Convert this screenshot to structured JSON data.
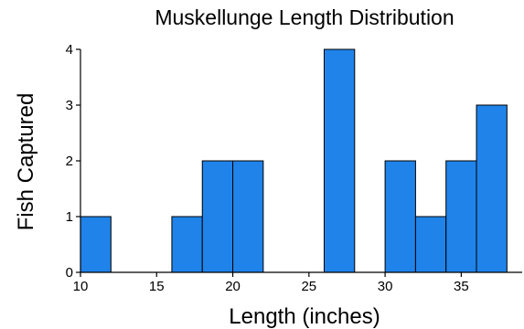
{
  "chart_data": {
    "type": "bar",
    "title": "Muskellunge Length Distribution",
    "xlabel": "Length (inches)",
    "ylabel": "Fish Captured",
    "bins": [
      {
        "start": 10,
        "end": 12,
        "count": 1
      },
      {
        "start": 12,
        "end": 14,
        "count": 0
      },
      {
        "start": 14,
        "end": 16,
        "count": 0
      },
      {
        "start": 16,
        "end": 18,
        "count": 1
      },
      {
        "start": 18,
        "end": 20,
        "count": 2
      },
      {
        "start": 20,
        "end": 22,
        "count": 2
      },
      {
        "start": 22,
        "end": 24,
        "count": 0
      },
      {
        "start": 24,
        "end": 26,
        "count": 0
      },
      {
        "start": 26,
        "end": 28,
        "count": 4
      },
      {
        "start": 28,
        "end": 30,
        "count": 0
      },
      {
        "start": 30,
        "end": 32,
        "count": 2
      },
      {
        "start": 32,
        "end": 34,
        "count": 1
      },
      {
        "start": 34,
        "end": 36,
        "count": 2
      },
      {
        "start": 36,
        "end": 38,
        "count": 3
      }
    ],
    "xlim": [
      10,
      39
    ],
    "ylim": [
      0,
      4
    ],
    "xticks": [
      10,
      15,
      20,
      25,
      30,
      35
    ],
    "yticks": [
      0,
      1,
      2,
      3,
      4
    ],
    "grid": false,
    "bar_color": "#1f83ea"
  }
}
